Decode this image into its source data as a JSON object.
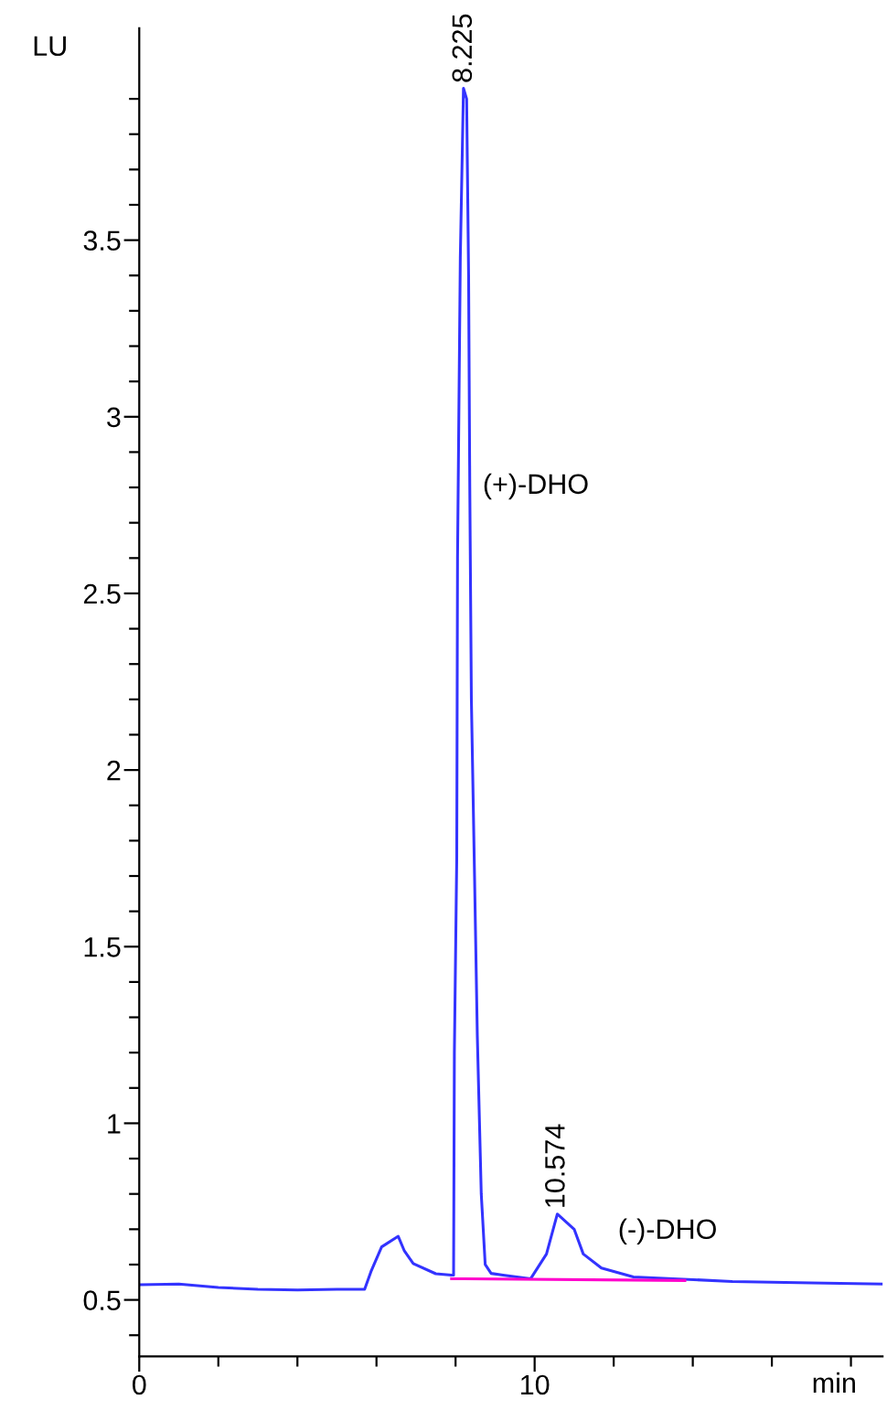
{
  "chart_data": {
    "type": "line",
    "xlabel": "min",
    "ylabel": "LU",
    "xlim": [
      0,
      18.8
    ],
    "ylim": [
      0.34,
      4.1
    ],
    "xticks": [
      0,
      {
        "value": 2,
        "label": null
      },
      {
        "value": 4,
        "label": null
      },
      {
        "value": 6,
        "label": null
      },
      {
        "value": 8,
        "label": null
      },
      10,
      {
        "value": 12,
        "label": null
      },
      {
        "value": 14,
        "label": null
      },
      {
        "value": 16,
        "label": null
      },
      {
        "value": 18,
        "label": null
      }
    ],
    "yticks": [
      {
        "value": 0.4,
        "label": null
      },
      0.5,
      {
        "value": 0.6,
        "label": null
      },
      {
        "value": 0.7,
        "label": null
      },
      {
        "value": 0.8,
        "label": null
      },
      {
        "value": 0.9,
        "label": null
      },
      1,
      {
        "value": 1.1,
        "label": null
      },
      {
        "value": 1.2,
        "label": null
      },
      {
        "value": 1.3,
        "label": null
      },
      {
        "value": 1.4,
        "label": null
      },
      1.5,
      {
        "value": 1.6,
        "label": null
      },
      {
        "value": 1.7,
        "label": null
      },
      {
        "value": 1.8,
        "label": null
      },
      {
        "value": 1.9,
        "label": null
      },
      2,
      {
        "value": 2.1,
        "label": null
      },
      {
        "value": 2.2,
        "label": null
      },
      {
        "value": 2.3,
        "label": null
      },
      {
        "value": 2.4,
        "label": null
      },
      2.5,
      {
        "value": 2.6,
        "label": null
      },
      {
        "value": 2.7,
        "label": null
      },
      {
        "value": 2.8,
        "label": null
      },
      {
        "value": 2.9,
        "label": null
      },
      3,
      {
        "value": 3.1,
        "label": null
      },
      {
        "value": 3.2,
        "label": null
      },
      {
        "value": 3.3,
        "label": null
      },
      {
        "value": 3.4,
        "label": null
      },
      3.5,
      {
        "value": 3.6,
        "label": null
      },
      {
        "value": 3.7,
        "label": null
      },
      {
        "value": 3.8,
        "label": null
      },
      {
        "value": 3.9,
        "label": null
      }
    ],
    "grid": false,
    "legend": false,
    "marker": "none",
    "line_style": "solid",
    "series": [
      {
        "color": "#3333ff",
        "x": [
          0,
          1,
          2,
          3,
          4,
          5,
          5.7,
          5.86,
          6.13,
          6.55,
          6.7,
          6.93,
          7.5,
          7.9,
          7.95,
          7.97,
          8.03,
          8.05,
          8.12,
          8.2,
          8.28,
          8.33,
          8.36,
          8.4,
          8.48,
          8.55,
          8.65,
          8.75,
          8.9,
          9.2,
          9.9,
          10.3,
          10.574,
          11.0,
          11.23,
          11.69,
          12.5,
          13.5,
          15,
          17,
          18.8
        ],
        "values": [
          0.543,
          0.545,
          0.535,
          0.53,
          0.528,
          0.53,
          0.53,
          0.58,
          0.65,
          0.68,
          0.64,
          0.603,
          0.574,
          0.57,
          0.57,
          1.2,
          1.75,
          2.6,
          3.45,
          3.93,
          3.9,
          3.4,
          2.8,
          2.2,
          1.7,
          1.25,
          0.8,
          0.6,
          0.575,
          0.57,
          0.56,
          0.63,
          0.743,
          0.7,
          0.63,
          0.59,
          0.565,
          0.56,
          0.552,
          0.548,
          0.545
        ]
      },
      {
        "color": "#ff00cc",
        "x": [
          7.9,
          13.8
        ],
        "values": [
          0.56,
          0.555
        ]
      }
    ],
    "annotations": [
      {
        "text": "8.225",
        "x": 8.225,
        "y": 3.93
      },
      {
        "text": "10.574",
        "x": 10.574,
        "y": 0.743
      },
      "(+)-DHO",
      "(-)-DHO"
    ]
  }
}
